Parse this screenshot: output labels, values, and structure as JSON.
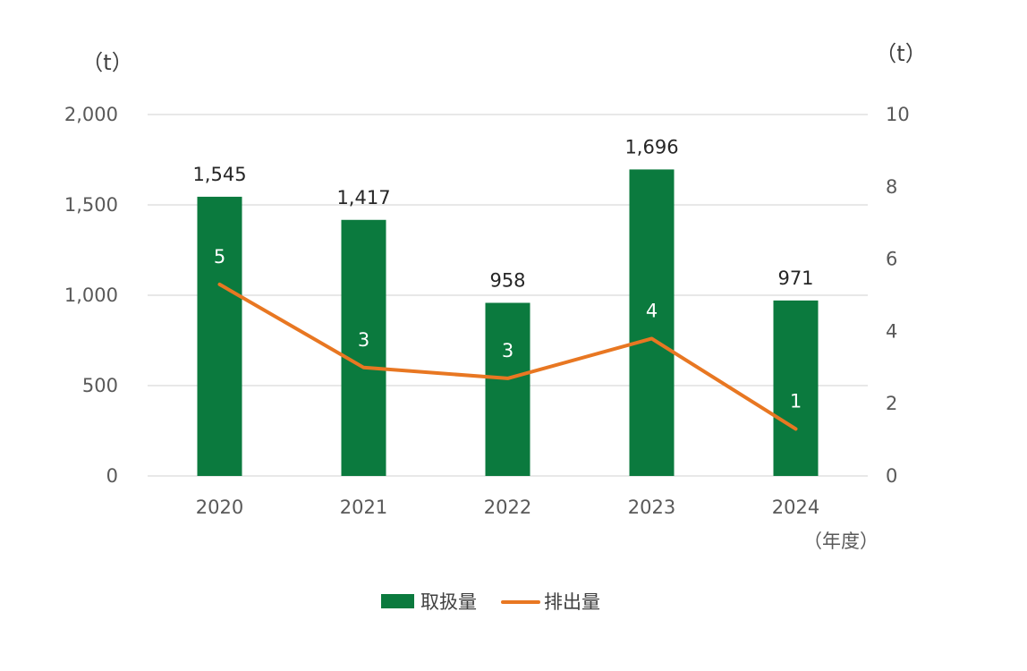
{
  "chart_data": {
    "type": "bar+line",
    "categories": [
      "2020",
      "2021",
      "2022",
      "2023",
      "2024"
    ],
    "series": [
      {
        "name": "取扱量",
        "type": "bar",
        "axis": "left",
        "values": [
          1545,
          1417,
          958,
          1696,
          971
        ],
        "labels": [
          "1,545",
          "1,417",
          "958",
          "1,696",
          "971"
        ],
        "color": "#0b7a3e"
      },
      {
        "name": "排出量",
        "type": "line",
        "axis": "right",
        "values": [
          5.3,
          3.0,
          2.7,
          3.8,
          1.3
        ],
        "labels": [
          "5",
          "3",
          "3",
          "4",
          "1"
        ],
        "color": "#e87722"
      }
    ],
    "y_left": {
      "unit": "（t）",
      "ylim": [
        0,
        2000
      ],
      "ticks": [
        "0",
        "500",
        "1,000",
        "1,500",
        "2,000"
      ]
    },
    "y_right": {
      "unit": "（t）",
      "ylim": [
        0,
        10
      ],
      "ticks": [
        "0",
        "2",
        "4",
        "6",
        "8",
        "10"
      ]
    },
    "xlabel": "（年度）",
    "grid": true,
    "legend_position": "bottom-center"
  }
}
